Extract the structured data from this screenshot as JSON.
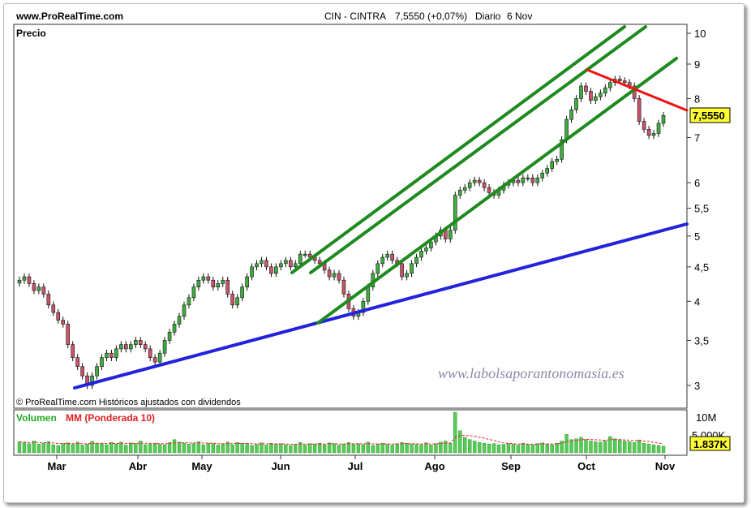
{
  "header": {
    "site": "www.ProRealTime.com",
    "symbol": "CIN - CINTRA",
    "quote": "7,5550 (+0,07%)",
    "period": "Diario",
    "date": "6 Nov"
  },
  "price_panel": {
    "label": "Precio",
    "current_price_label": "7,5550",
    "copyright": "© ProRealTime.com  Históricos ajustados con dividendos",
    "watermark": "www.labolsaporantonomasia.es"
  },
  "volume_panel": {
    "label_volume": "Volumen",
    "label_mm": "MM (Ponderada 10)",
    "axis_top": "10M",
    "axis_mid": "5.000K",
    "current_volume_label": "1.837K"
  },
  "colors": {
    "up_candle": "#3fae3f",
    "down_candle": "#c8556a",
    "channel": "#1f8a1f",
    "support": "#2222dd",
    "resistance": "#ee1111",
    "volume_bar": "#55cc55",
    "volume_ma": "#ee2222"
  },
  "chart_data": {
    "type": "candlestick",
    "y_scale": "log",
    "ylim": [
      2.8,
      10.5
    ],
    "y_ticks": [
      "3",
      "3,5",
      "4",
      "4,5",
      "5",
      "5,5",
      "6",
      "7",
      "8",
      "9",
      "10"
    ],
    "x_labels": [
      "Mar",
      "Abr",
      "May",
      "Jun",
      "Jul",
      "Ago",
      "Sep",
      "Oct",
      "Nov"
    ],
    "close_series": [
      4.3,
      4.35,
      4.25,
      4.15,
      4.2,
      4.1,
      3.95,
      3.85,
      3.75,
      3.7,
      3.45,
      3.3,
      3.2,
      3.1,
      3.0,
      3.1,
      3.2,
      3.3,
      3.35,
      3.3,
      3.4,
      3.45,
      3.4,
      3.45,
      3.5,
      3.45,
      3.4,
      3.3,
      3.25,
      3.35,
      3.5,
      3.6,
      3.7,
      3.8,
      3.95,
      4.05,
      4.2,
      4.3,
      4.35,
      4.3,
      4.2,
      4.25,
      4.3,
      4.1,
      3.95,
      4.05,
      4.2,
      4.35,
      4.5,
      4.55,
      4.6,
      4.5,
      4.4,
      4.5,
      4.55,
      4.6,
      4.5,
      4.55,
      4.7,
      4.7,
      4.65,
      4.6,
      4.55,
      4.45,
      4.35,
      4.4,
      4.3,
      4.1,
      3.9,
      3.8,
      3.85,
      4.0,
      4.2,
      4.4,
      4.55,
      4.65,
      4.7,
      4.6,
      4.55,
      4.35,
      4.4,
      4.55,
      4.65,
      4.75,
      4.8,
      4.9,
      5.0,
      5.1,
      4.95,
      5.1,
      5.75,
      5.85,
      5.9,
      6.0,
      6.05,
      6.0,
      5.9,
      5.8,
      5.75,
      5.85,
      5.95,
      6.0,
      6.05,
      6.0,
      6.1,
      6.1,
      6.0,
      6.1,
      6.2,
      6.3,
      6.45,
      6.5,
      6.95,
      7.45,
      7.7,
      8.0,
      8.35,
      8.2,
      7.95,
      8.05,
      8.15,
      8.3,
      8.45,
      8.55,
      8.5,
      8.45,
      8.35,
      8.0,
      7.4,
      7.2,
      7.05,
      7.1,
      7.35,
      7.55
    ],
    "volume_series": [
      3,
      2.8,
      2.5,
      3.2,
      2.4,
      2.6,
      3.0,
      2.2,
      2.0,
      2.5,
      2.7,
      2.3,
      2.9,
      2.1,
      2.4,
      3.1,
      2.6,
      2.5,
      2.2,
      2.8,
      2.4,
      2.9,
      2.1,
      2.7,
      2.5,
      3.2,
      2.2,
      2.4,
      2.6,
      2.3,
      2.2,
      2.8,
      3.6,
      2.9,
      2.6,
      2.4,
      2.5,
      3.0,
      2.2,
      2.6,
      2.5,
      2.1,
      2.4,
      2.9,
      2.2,
      2.8,
      2.6,
      2.5,
      2.0,
      2.3,
      2.7,
      2.1,
      2.6,
      2.4,
      2.5,
      2.2,
      2.0,
      2.3,
      2.8,
      2.1,
      2.5,
      2.4,
      2.6,
      2.2,
      2.7,
      2.5,
      2.1,
      2.4,
      2.8,
      2.3,
      2.5,
      2.2,
      2.9,
      2.0,
      2.4,
      2.6,
      2.3,
      2.1,
      2.5,
      2.8,
      2.6,
      2.4,
      2.3,
      2.2,
      2.7,
      2.1,
      2.5,
      2.9,
      3.2,
      2.6,
      11.0,
      6.0,
      4.2,
      3.6,
      3.2,
      2.8,
      2.6,
      2.4,
      2.5,
      2.2,
      2.3,
      2.5,
      2.4,
      2.1,
      2.6,
      2.3,
      2.2,
      2.5,
      2.7,
      2.4,
      2.2,
      2.6,
      3.2,
      5.0,
      3.6,
      3.8,
      4.2,
      3.6,
      3.2,
      3.0,
      2.9,
      3.3,
      4.4,
      3.8,
      3.6,
      3.2,
      3.0,
      2.8,
      3.5,
      2.6,
      2.4,
      2.2,
      2.0,
      1.837
    ],
    "volume_ylim": [
      0,
      11
    ],
    "volume_ticks": [
      "10M",
      "5.000K"
    ]
  }
}
